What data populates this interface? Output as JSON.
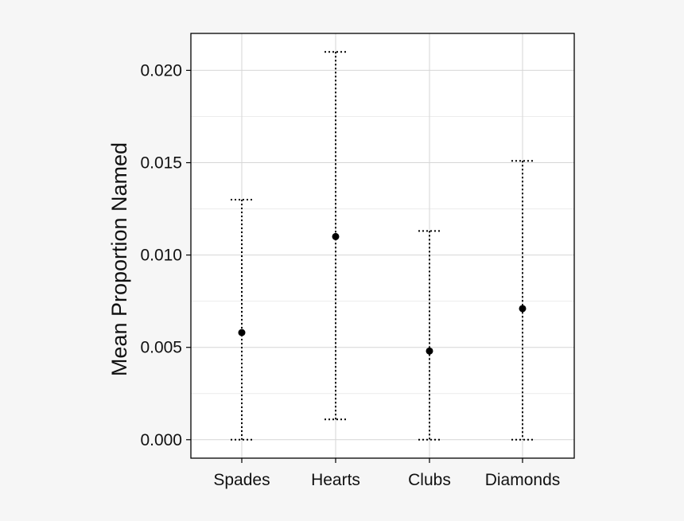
{
  "chart_data": {
    "type": "scatter",
    "title": "",
    "xlabel": "",
    "ylabel": "Mean Proportion Named",
    "categories": [
      "Spades",
      "Hearts",
      "Clubs",
      "Diamonds"
    ],
    "values": [
      0.0058,
      0.011,
      0.0048,
      0.0071
    ],
    "error_low": [
      0.0,
      0.0011,
      0.0,
      0.0
    ],
    "error_high": [
      0.013,
      0.021,
      0.0113,
      0.0151
    ],
    "ylim": [
      -0.001,
      0.022
    ],
    "yticks": [
      0.0,
      0.005,
      0.01,
      0.015,
      0.02
    ],
    "ytick_labels": [
      "0.000",
      "0.005",
      "0.010",
      "0.015",
      "0.020"
    ],
    "minor_gridlines": [
      0.0025,
      0.0075,
      0.0125,
      0.0175
    ],
    "grid": true,
    "legend": "none",
    "colors": {
      "page_background": "#f6f6f6",
      "plot_background": "#ffffff",
      "grid": "#d6d6d6",
      "minor_grid": "#ececec",
      "marker": "#000000",
      "error_bar": "#000000",
      "frame": "#000000"
    }
  }
}
